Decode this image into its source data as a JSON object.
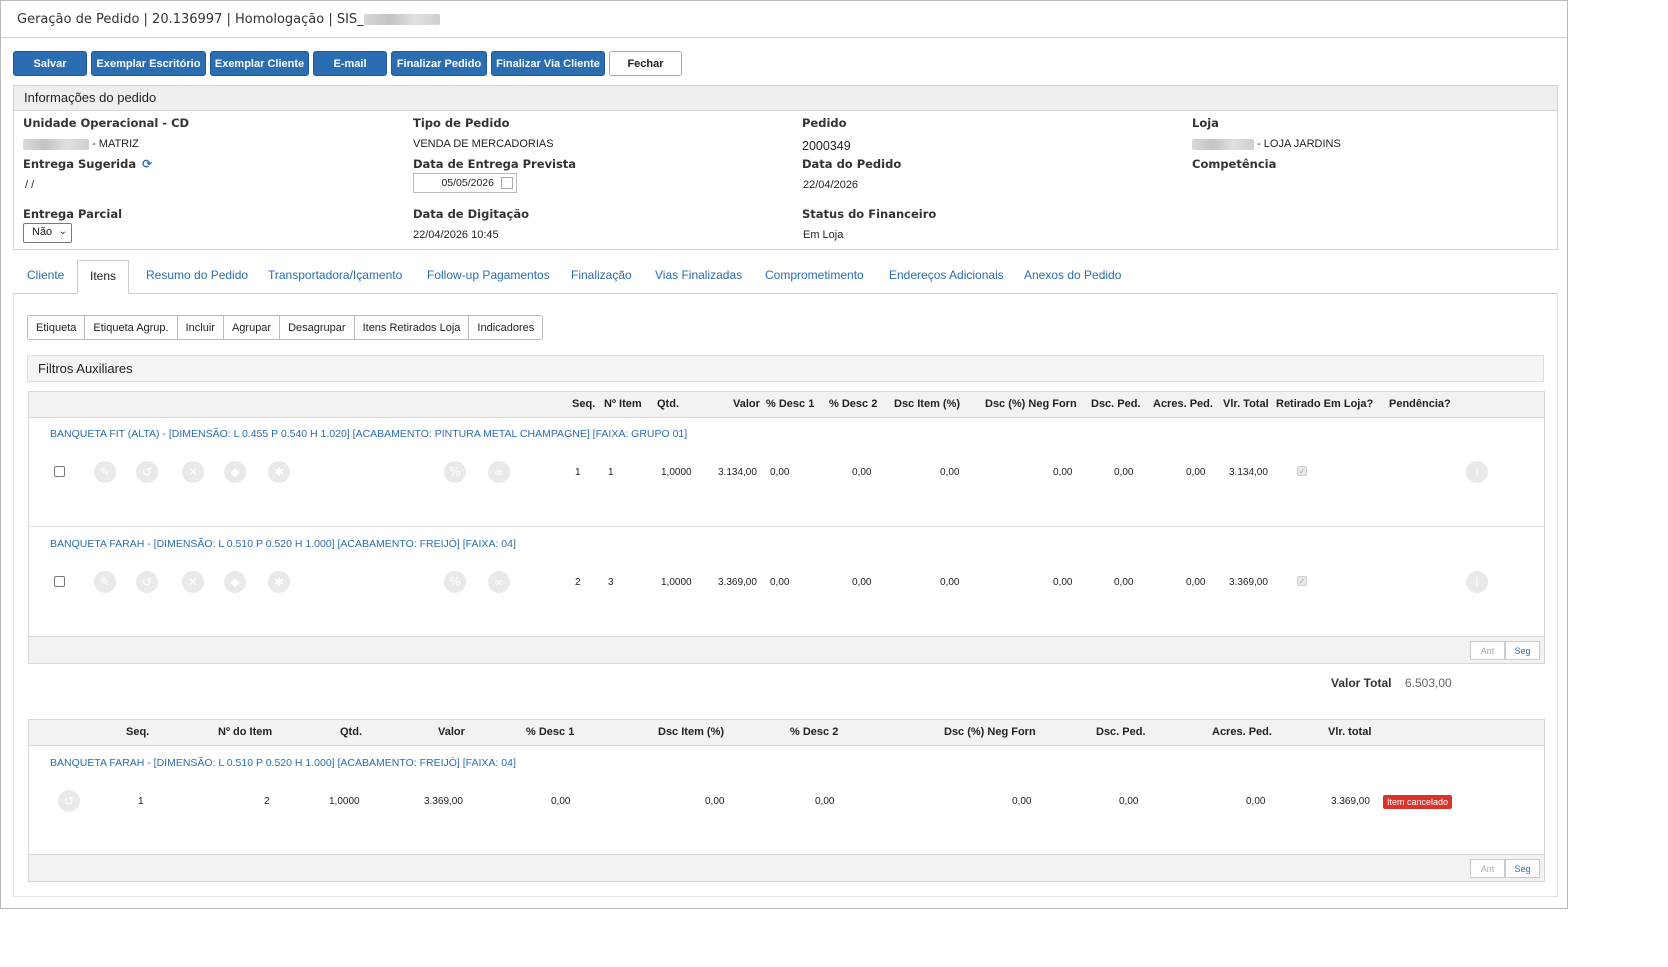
{
  "window": {
    "title": "Geração de Pedido | 20.136997 | Homologação | SIS_"
  },
  "toolbar": {
    "buttons": [
      "Salvar",
      "Exemplar Escritório",
      "Exemplar Cliente",
      "E-mail",
      "Finalizar Pedido",
      "Finalizar Via Cliente",
      "Fechar"
    ]
  },
  "info": {
    "header": "Informações do pedido",
    "unidade_label": "Unidade Operacional - CD",
    "unidade_value": "- MATRIZ",
    "tipo_label": "Tipo de Pedido",
    "tipo_value": "VENDA DE MERCADORIAS",
    "pedido_label": "Pedido",
    "pedido_value": "2000349",
    "loja_label": "Loja",
    "loja_value": "- LOJA JARDINS",
    "entrega_sug_label": "Entrega Sugerida",
    "entrega_sug_value": "/ /",
    "data_entrega_label": "Data de Entrega Prevista",
    "data_entrega_value": "05/05/2026",
    "data_pedido_label": "Data do Pedido",
    "data_pedido_value": "22/04/2026",
    "competencia_label": "Competência",
    "entrega_parcial_label": "Entrega Parcial",
    "entrega_parcial_value": "Não",
    "data_digitacao_label": "Data de Digitação",
    "data_digitacao_value": "22/04/2026 10:45",
    "status_fin_label": "Status do Financeiro",
    "status_fin_value": "Em Loja"
  },
  "tabs": [
    "Cliente",
    "Itens",
    "Resumo do Pedido",
    "Transportadora/Içamento",
    "Follow-up Pagamentos",
    "Finalização",
    "Vias Finalizadas",
    "Comprometimento",
    "Endereços Adicionais",
    "Anexos do Pedido"
  ],
  "subtoolbar": [
    "Etiqueta",
    "Etiqueta Agrup.",
    "Incluir",
    "Agrupar",
    "Desagrupar",
    "Itens Retirados Loja",
    "Indicadores"
  ],
  "filters": {
    "title": "Filtros Auxiliares"
  },
  "items_table": {
    "headers": [
      "Seq.",
      "Nº Item",
      "Qtd.",
      "Valor",
      "% Desc 1",
      "% Desc 2",
      "Dsc Item (%)",
      "Dsc (%) Neg Forn",
      "Dsc. Ped.",
      "Acres. Ped.",
      "Vlr. Total",
      "Retirado Em Loja?",
      "Pendência?"
    ],
    "rows": [
      {
        "product": "BANQUETA FIT (ALTA) - [DIMENSÃO: L 0.455 P 0.540 H 1.020] [ACABAMENTO: PINTURA METAL CHAMPAGNE] [FAIXA: GRUPO 01]",
        "cells": [
          "1",
          "1",
          "1,0000",
          "3.134,00",
          "0,00",
          "0,00",
          "0,00",
          "0,00",
          "0,00",
          "0,00",
          "3.134,00"
        ]
      },
      {
        "product": "BANQUETA FARAH - [DIMENSÃO: L 0.510 P 0.520 H 1.000] [ACABAMENTO: FREIJÓ] [FAIXA: 04]",
        "cells": [
          "2",
          "3",
          "1,0000",
          "3.369,00",
          "0,00",
          "0,00",
          "0,00",
          "0,00",
          "0,00",
          "0,00",
          "3.369,00"
        ]
      }
    ],
    "pager": {
      "prev": "Ant",
      "next": "Seg"
    }
  },
  "total": {
    "label": "Valor Total",
    "value": "6.503,00"
  },
  "cancelled_table": {
    "headers": [
      "Seq.",
      "Nº do Item",
      "Qtd.",
      "Valor",
      "% Desc 1",
      "Dsc Item (%)",
      "% Desc 2",
      "Dsc (%) Neg Forn",
      "Dsc. Ped.",
      "Acres. Ped.",
      "Vlr. total"
    ],
    "rows": [
      {
        "product": "BANQUETA FARAH - [DIMENSÃO: L 0.510 P 0.520 H 1.000] [ACABAMENTO: FREIJÓ] [FAIXA: 04]",
        "cells": [
          "1",
          "2",
          "1,0000",
          "3.369,00",
          "0,00",
          "0,00",
          "0,00",
          "0,00",
          "0,00",
          "0,00",
          "3.369,00"
        ],
        "badge": "Item cancelado"
      }
    ],
    "pager": {
      "prev": "Ant",
      "next": "Seg"
    }
  },
  "colors": {
    "accent": "#2a6db0",
    "cancel_badge": "#d9342b"
  }
}
